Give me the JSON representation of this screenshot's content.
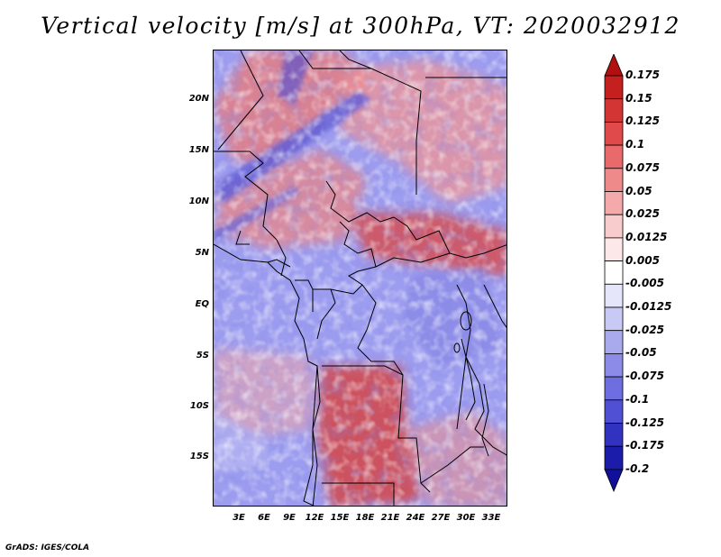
{
  "title": "Vertical velocity [m/s] at 300hPa, VT: 2020032912",
  "footer": "GrADS: IGES/COLA",
  "axes": {
    "lat_labels": [
      "20N",
      "15N",
      "10N",
      "5N",
      "EQ",
      "5S",
      "10S",
      "15S"
    ],
    "lon_labels": [
      "3E",
      "6E",
      "9E",
      "12E",
      "15E",
      "18E",
      "21E",
      "24E",
      "27E",
      "30E",
      "33E"
    ]
  },
  "colorbar": {
    "labels": [
      "0.175",
      "0.15",
      "0.125",
      "0.1",
      "0.075",
      "0.05",
      "0.025",
      "0.0125",
      "0.005",
      "-0.005",
      "-0.0125",
      "-0.025",
      "-0.05",
      "-0.075",
      "-0.1",
      "-0.125",
      "-0.175",
      "-0.2"
    ],
    "colors": [
      "#b01010",
      "#c42020",
      "#d33535",
      "#e04a4a",
      "#e86a6a",
      "#ee8a8a",
      "#f4aaaa",
      "#f8cccc",
      "#fce8e8",
      "#ffffff",
      "#e6e6fb",
      "#c9c9f5",
      "#a9a9ee",
      "#8c8ce8",
      "#6e6ee0",
      "#5050d4",
      "#3232c0",
      "#1c1caa",
      "#10109a"
    ]
  },
  "colors": {
    "background_blue": "#9d9df0",
    "field_red": "#e87070",
    "field_red_strong": "#c42020",
    "field_blue_strong": "#4040cc"
  }
}
